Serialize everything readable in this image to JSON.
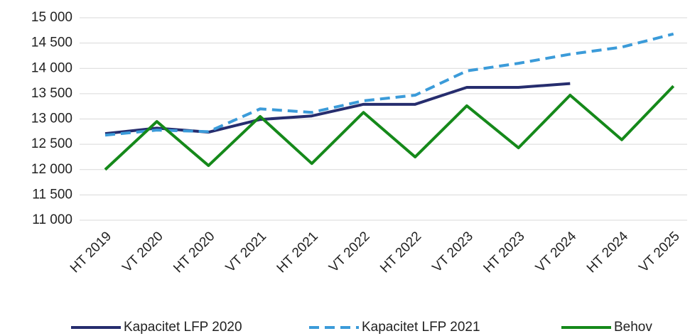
{
  "chart_data": {
    "type": "line",
    "categories": [
      "HT 2019",
      "VT 2020",
      "HT 2020",
      "VT 2021",
      "HT 2021",
      "VT 2022",
      "HT 2022",
      "VT 2023",
      "HT 2023",
      "VT 2024",
      "HT 2024",
      "VT 2025"
    ],
    "series": [
      {
        "name": "Kapacitet LFP 2020",
        "color": "#262d6e",
        "dash": false,
        "values": [
          12710,
          12820,
          12740,
          12990,
          13060,
          13290,
          13290,
          13625,
          13625,
          13700,
          null,
          null
        ]
      },
      {
        "name": "Kapacitet LFP 2021",
        "color": "#3b9bd9",
        "dash": true,
        "values": [
          12680,
          12780,
          12750,
          13200,
          13130,
          13360,
          13470,
          13950,
          14100,
          14280,
          14420,
          14680
        ]
      },
      {
        "name": "Behov",
        "color": "#15891a",
        "dash": false,
        "values": [
          12000,
          12950,
          12080,
          13050,
          12120,
          13130,
          12250,
          13260,
          12430,
          13470,
          12590,
          13650
        ]
      }
    ],
    "ylim": [
      11000,
      15000
    ],
    "yticks": [
      {
        "value": 11000,
        "label": "11 000"
      },
      {
        "value": 11500,
        "label": "11 500"
      },
      {
        "value": 12000,
        "label": "12 000"
      },
      {
        "value": 12500,
        "label": "12 500"
      },
      {
        "value": 13000,
        "label": "13 000"
      },
      {
        "value": 13500,
        "label": "13 500"
      },
      {
        "value": 14000,
        "label": "14 000"
      },
      {
        "value": 14500,
        "label": "14 500"
      },
      {
        "value": 15000,
        "label": "15 000"
      }
    ],
    "grid": true,
    "legend": "bottom"
  }
}
